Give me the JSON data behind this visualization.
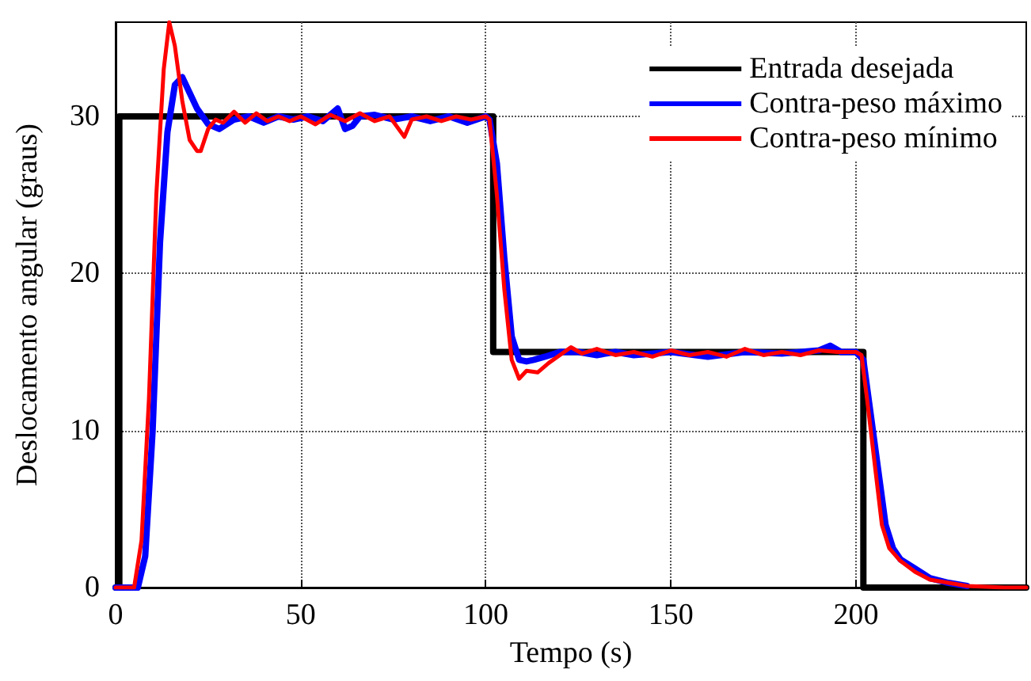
{
  "chart_data": {
    "type": "line",
    "xlabel": "Tempo (s)",
    "ylabel": "Deslocamento angular (graus)",
    "xlim": [
      0,
      246
    ],
    "xticks": [
      0,
      50,
      100,
      150,
      200
    ],
    "ylim": [
      0,
      36
    ],
    "yticks": [
      0,
      10,
      20,
      30
    ],
    "grid": true,
    "legend": "top right",
    "marker": "none",
    "line_style": "solid",
    "series": [
      {
        "name": "Entrada desejada",
        "type": "step",
        "color": "#000000",
        "x": [
          0,
          1,
          102,
          202,
          246
        ],
        "values": [
          0,
          30,
          15,
          0,
          0
        ]
      },
      {
        "name": "Contra-peso máximo",
        "color": "#0000ff",
        "x": [
          0,
          6,
          8,
          10,
          12,
          14,
          16,
          18,
          20,
          22,
          25,
          28,
          32,
          36,
          40,
          44,
          48,
          52,
          56,
          60,
          62,
          64,
          66,
          70,
          75,
          80,
          85,
          90,
          95,
          100,
          101,
          103,
          105,
          107,
          109,
          111,
          113,
          116,
          120,
          125,
          130,
          135,
          140,
          150,
          160,
          170,
          180,
          190,
          193,
          196,
          200,
          202,
          204,
          206,
          208,
          210,
          212,
          216,
          220,
          225,
          230
        ],
        "values": [
          0,
          0,
          2,
          10,
          22,
          29,
          32,
          32.5,
          31.5,
          30.5,
          29.5,
          29.2,
          29.8,
          30,
          29.6,
          30,
          29.8,
          30,
          29.7,
          30.5,
          29.2,
          29.4,
          30,
          30.1,
          29.8,
          30,
          29.7,
          30,
          29.6,
          30,
          29.8,
          27,
          21,
          16,
          14.5,
          14.4,
          14.5,
          14.7,
          15,
          15,
          14.8,
          15,
          14.8,
          15,
          14.7,
          15,
          14.9,
          15.1,
          15.4,
          15,
          15,
          14.5,
          11,
          7.5,
          4,
          2.5,
          1.8,
          1.2,
          0.6,
          0.3,
          0.1
        ]
      },
      {
        "name": "Contra-peso mínimo",
        "color": "#ff0000",
        "x": [
          0,
          5,
          7,
          9,
          11,
          13,
          14.5,
          16,
          18,
          20,
          22,
          23,
          25,
          27,
          29,
          32,
          35,
          38,
          41,
          44,
          47,
          50,
          54,
          58,
          62,
          66,
          70,
          74,
          78,
          80,
          84,
          88,
          92,
          96,
          100,
          101,
          103,
          105,
          107,
          109,
          111,
          114,
          117,
          120,
          123,
          126,
          130,
          135,
          140,
          145,
          150,
          155,
          160,
          165,
          170,
          175,
          180,
          185,
          190,
          195,
          200,
          201.5,
          203,
          205,
          207,
          209,
          212,
          216,
          220,
          225,
          230,
          240,
          246
        ],
        "values": [
          0,
          0,
          3,
          12,
          25,
          33,
          36,
          34.5,
          31,
          28.5,
          27.8,
          27.8,
          29.2,
          29.8,
          29.6,
          30.3,
          29.6,
          30.2,
          29.7,
          30,
          29.7,
          30,
          29.5,
          30.1,
          29.7,
          30.2,
          29.7,
          30,
          28.7,
          29.8,
          30,
          29.7,
          30,
          29.8,
          30,
          29.8,
          25,
          19,
          14.5,
          13.3,
          13.8,
          13.7,
          14.3,
          14.8,
          15.3,
          14.9,
          15.2,
          14.8,
          15,
          14.7,
          15.1,
          14.8,
          15,
          14.7,
          15.2,
          14.8,
          15,
          14.8,
          15.1,
          15,
          15,
          14.8,
          12,
          8,
          4,
          2.5,
          1.7,
          1,
          0.5,
          0.3,
          0.1,
          0,
          0
        ]
      }
    ]
  }
}
